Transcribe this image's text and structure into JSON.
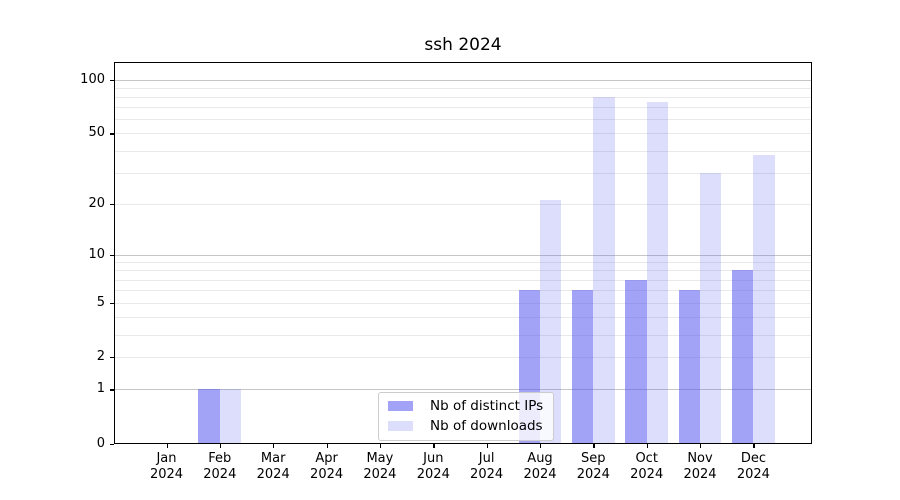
{
  "chart_data": {
    "type": "bar",
    "title": "ssh 2024",
    "categories": [
      "Jan",
      "Feb",
      "Mar",
      "Apr",
      "May",
      "Jun",
      "Jul",
      "Aug",
      "Sep",
      "Oct",
      "Nov",
      "Dec"
    ],
    "year_label": "2024",
    "series": [
      {
        "name": "Nb of distinct IPs",
        "color": "rgba(85,85,238,0.55)",
        "values": [
          0,
          1,
          0,
          0,
          0,
          0,
          0,
          6,
          6,
          7,
          6,
          8
        ]
      },
      {
        "name": "Nb of downloads",
        "color": "rgba(85,85,238,0.20)",
        "values": [
          0,
          1,
          0,
          0,
          0,
          0,
          0,
          21,
          80,
          75,
          30,
          38
        ]
      }
    ],
    "yscale": "log1p",
    "yticks": [
      0,
      1,
      2,
      5,
      10,
      20,
      50,
      100
    ],
    "major_gridlines": [
      1,
      10,
      100
    ],
    "minor_gridlines": [
      2,
      3,
      4,
      5,
      6,
      7,
      8,
      9,
      20,
      30,
      40,
      50,
      60,
      70,
      80,
      90
    ],
    "ylim": [
      0,
      125
    ],
    "grid": "horizontal",
    "legend_position": "lower center",
    "colors": {
      "axis": "#000000",
      "text": "#000000",
      "major_grid": "#c6c6c6",
      "minor_grid": "#e9e9e9",
      "legend_border": "#cccccc"
    }
  }
}
